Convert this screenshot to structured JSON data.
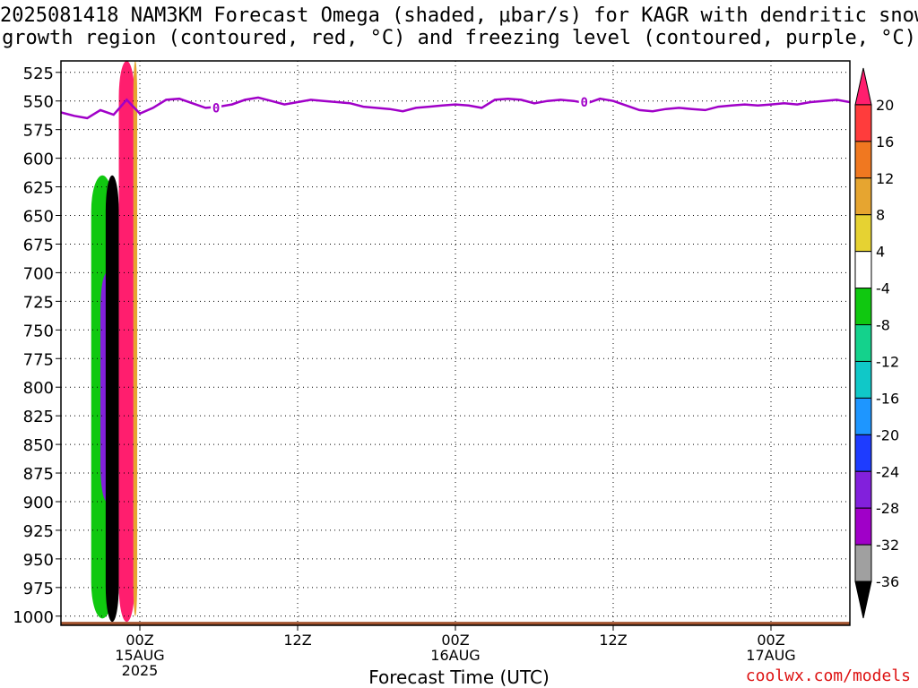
{
  "title_line1": "2025081418 NAM3KM Forecast Omega (shaded, μbar/s) for KAGR with dendritic snow",
  "title_line2": "growth region (contoured, red, °C) and freezing level (contoured, purple, °C)",
  "xlabel": "Forecast Time (UTC)",
  "credit": "coolwx.com/models",
  "chart_data": {
    "type": "heatmap",
    "yaxis": {
      "label": "",
      "scale": "pressure (inverted)",
      "ticks": [
        525,
        550,
        575,
        600,
        625,
        650,
        675,
        700,
        725,
        750,
        775,
        800,
        825,
        850,
        875,
        900,
        925,
        950,
        975,
        1000
      ],
      "range": [
        515,
        1008
      ]
    },
    "xaxis": {
      "ticks": [
        {
          "hours": 6,
          "lines": [
            "00Z",
            "15AUG",
            "2025"
          ]
        },
        {
          "hours": 18,
          "lines": [
            "12Z"
          ]
        },
        {
          "hours": 30,
          "lines": [
            "00Z",
            "16AUG"
          ]
        },
        {
          "hours": 42,
          "lines": [
            "12Z"
          ]
        },
        {
          "hours": 54,
          "lines": [
            "00Z",
            "17AUG"
          ]
        }
      ],
      "range": [
        0,
        60
      ]
    },
    "grid": true,
    "colorbar": {
      "labels": [
        "20",
        "16",
        "12",
        "8",
        "4",
        "-4",
        "-8",
        "-12",
        "-16",
        "-20",
        "-24",
        "-28",
        "-32",
        "-36"
      ],
      "colors": [
        "#ff1e6e",
        "#ff3c3c",
        "#f07820",
        "#e6a530",
        "#e6d232",
        "#ffffff",
        "#10c810",
        "#14d28c",
        "#10c8c8",
        "#1e96ff",
        "#1e3cff",
        "#8220dc",
        "#a000c8",
        "#a0a0a0",
        "#000000"
      ]
    },
    "freezing_level": {
      "label": "0",
      "color": "#a000c8",
      "points": [
        [
          0,
          560
        ],
        [
          1,
          563
        ],
        [
          2,
          565
        ],
        [
          3,
          558
        ],
        [
          4,
          562
        ],
        [
          5,
          549
        ],
        [
          6,
          561
        ],
        [
          7,
          556
        ],
        [
          8,
          549
        ],
        [
          9,
          548
        ],
        [
          10,
          552
        ],
        [
          11,
          556
        ],
        [
          12,
          555
        ],
        [
          13,
          553
        ],
        [
          14,
          549
        ],
        [
          15,
          547
        ],
        [
          16,
          550
        ],
        [
          17,
          553
        ],
        [
          18,
          551
        ],
        [
          19,
          549
        ],
        [
          20,
          550
        ],
        [
          22,
          552
        ],
        [
          23,
          555
        ],
        [
          25,
          557
        ],
        [
          26,
          559
        ],
        [
          27,
          556
        ],
        [
          28,
          555
        ],
        [
          29,
          554
        ],
        [
          30,
          553
        ],
        [
          31,
          554
        ],
        [
          32,
          556
        ],
        [
          33,
          549
        ],
        [
          34,
          548
        ],
        [
          35,
          549
        ],
        [
          36,
          552
        ],
        [
          37,
          550
        ],
        [
          38,
          549
        ],
        [
          39,
          550
        ],
        [
          40,
          552
        ],
        [
          41,
          548
        ],
        [
          42,
          550
        ],
        [
          43,
          554
        ],
        [
          44,
          558
        ],
        [
          45,
          559
        ],
        [
          46,
          557
        ],
        [
          47,
          556
        ],
        [
          48,
          557
        ],
        [
          49,
          558
        ],
        [
          50,
          555
        ],
        [
          51,
          554
        ],
        [
          52,
          553
        ],
        [
          53,
          554
        ],
        [
          54,
          553
        ],
        [
          55,
          552
        ],
        [
          56,
          553
        ],
        [
          57,
          551
        ],
        [
          58,
          550
        ],
        [
          59,
          549
        ],
        [
          60,
          551
        ]
      ],
      "label_positions": [
        [
          11.8,
          556
        ],
        [
          39.8,
          551
        ]
      ]
    },
    "omega_regions": [
      {
        "name": "strong rising",
        "level": 20,
        "x": [
          4.4,
          5.6
        ],
        "y": [
          515,
          1005
        ],
        "color": "#ff1e6e"
      },
      {
        "name": "rising edge",
        "level": 8,
        "x": [
          5.5,
          5.8
        ],
        "y": [
          515,
          1000
        ],
        "color": "#e6a530"
      },
      {
        "name": "sinking core",
        "level": -36,
        "x": [
          3.4,
          4.4
        ],
        "y": [
          615,
          1005
        ],
        "color": "#000000"
      },
      {
        "name": "sinking dendritic",
        "level": -28,
        "x": [
          3.0,
          4.0
        ],
        "y": [
          700,
          900
        ],
        "color": "#8220dc"
      },
      {
        "name": "sinking outer",
        "level": -8,
        "x": [
          2.3,
          4.0
        ],
        "y": [
          615,
          1002
        ],
        "color": "#10c810"
      }
    ],
    "ground": {
      "pressure": 1005,
      "color": "#a0522d"
    }
  }
}
